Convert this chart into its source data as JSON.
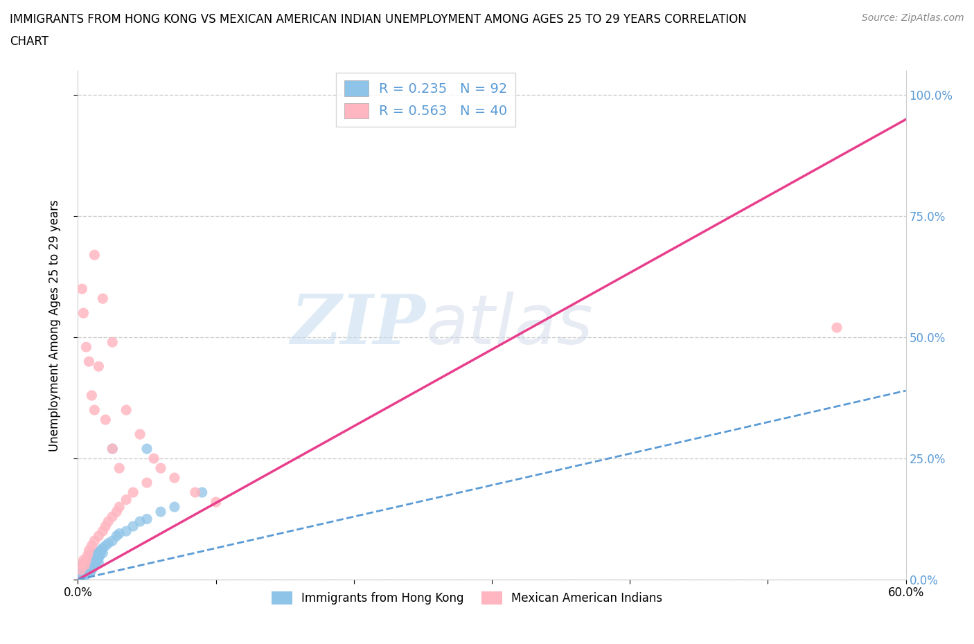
{
  "title_line1": "IMMIGRANTS FROM HONG KONG VS MEXICAN AMERICAN INDIAN UNEMPLOYMENT AMONG AGES 25 TO 29 YEARS CORRELATION",
  "title_line2": "CHART",
  "source": "Source: ZipAtlas.com",
  "ylabel": "Unemployment Among Ages 25 to 29 years",
  "legend_label_1": "Immigrants from Hong Kong",
  "legend_label_2": "Mexican American Indians",
  "R1": 0.235,
  "N1": 92,
  "R2": 0.563,
  "N2": 40,
  "color_blue": "#8ec4e8",
  "color_pink": "#ffb6c1",
  "trend_color_blue": "#5b9bd5",
  "trend_color_pink": "#e83e8c",
  "xlim": [
    0.0,
    0.6
  ],
  "ylim": [
    0.0,
    1.05
  ],
  "xticks": [
    0.0,
    0.1,
    0.2,
    0.3,
    0.4,
    0.5,
    0.6
  ],
  "yticks": [
    0.0,
    0.25,
    0.5,
    0.75,
    1.0
  ],
  "right_ytick_labels": [
    "0.0%",
    "25.0%",
    "50.0%",
    "75.0%",
    "100.0%"
  ],
  "watermark_zip": "ZIP",
  "watermark_atlas": "atlas",
  "pink_trend_slope": 1.583,
  "pink_trend_intercept": 0.0,
  "blue_trend_slope": 0.65,
  "blue_trend_intercept": 0.0,
  "blue_points_x": [
    0.001,
    0.002,
    0.002,
    0.003,
    0.003,
    0.003,
    0.004,
    0.004,
    0.004,
    0.004,
    0.005,
    0.005,
    0.005,
    0.005,
    0.006,
    0.006,
    0.006,
    0.007,
    0.007,
    0.007,
    0.008,
    0.008,
    0.008,
    0.009,
    0.009,
    0.01,
    0.01,
    0.01,
    0.011,
    0.011,
    0.012,
    0.012,
    0.013,
    0.013,
    0.014,
    0.015,
    0.015,
    0.016,
    0.017,
    0.018,
    0.001,
    0.002,
    0.003,
    0.003,
    0.004,
    0.005,
    0.005,
    0.006,
    0.006,
    0.007,
    0.007,
    0.008,
    0.009,
    0.009,
    0.01,
    0.011,
    0.012,
    0.013,
    0.014,
    0.015,
    0.001,
    0.002,
    0.002,
    0.003,
    0.004,
    0.004,
    0.005,
    0.006,
    0.007,
    0.008,
    0.009,
    0.01,
    0.011,
    0.012,
    0.013,
    0.014,
    0.016,
    0.018,
    0.02,
    0.022,
    0.025,
    0.028,
    0.03,
    0.035,
    0.04,
    0.045,
    0.05,
    0.06,
    0.07,
    0.09,
    0.025,
    0.05
  ],
  "blue_points_y": [
    0.01,
    0.015,
    0.02,
    0.01,
    0.025,
    0.03,
    0.015,
    0.02,
    0.025,
    0.03,
    0.02,
    0.025,
    0.03,
    0.035,
    0.025,
    0.03,
    0.035,
    0.02,
    0.03,
    0.04,
    0.025,
    0.035,
    0.045,
    0.03,
    0.04,
    0.025,
    0.035,
    0.05,
    0.03,
    0.045,
    0.035,
    0.05,
    0.04,
    0.055,
    0.045,
    0.035,
    0.055,
    0.05,
    0.06,
    0.055,
    0.005,
    0.01,
    0.015,
    0.02,
    0.01,
    0.015,
    0.02,
    0.01,
    0.015,
    0.02,
    0.025,
    0.02,
    0.015,
    0.025,
    0.02,
    0.025,
    0.03,
    0.035,
    0.04,
    0.045,
    0.0,
    0.005,
    0.01,
    0.005,
    0.01,
    0.015,
    0.01,
    0.015,
    0.02,
    0.025,
    0.03,
    0.035,
    0.04,
    0.045,
    0.05,
    0.055,
    0.06,
    0.065,
    0.07,
    0.075,
    0.08,
    0.09,
    0.095,
    0.1,
    0.11,
    0.12,
    0.125,
    0.14,
    0.15,
    0.18,
    0.27,
    0.27
  ],
  "pink_points_x": [
    0.002,
    0.003,
    0.004,
    0.005,
    0.006,
    0.007,
    0.008,
    0.01,
    0.012,
    0.015,
    0.018,
    0.02,
    0.022,
    0.025,
    0.028,
    0.03,
    0.035,
    0.04,
    0.05,
    0.06,
    0.003,
    0.004,
    0.006,
    0.008,
    0.01,
    0.012,
    0.015,
    0.02,
    0.025,
    0.03,
    0.012,
    0.018,
    0.025,
    0.035,
    0.045,
    0.055,
    0.07,
    0.085,
    0.1,
    0.55
  ],
  "pink_points_y": [
    0.02,
    0.03,
    0.04,
    0.03,
    0.04,
    0.05,
    0.06,
    0.07,
    0.08,
    0.09,
    0.1,
    0.11,
    0.12,
    0.13,
    0.14,
    0.15,
    0.165,
    0.18,
    0.2,
    0.23,
    0.6,
    0.55,
    0.48,
    0.45,
    0.38,
    0.35,
    0.44,
    0.33,
    0.27,
    0.23,
    0.67,
    0.58,
    0.49,
    0.35,
    0.3,
    0.25,
    0.21,
    0.18,
    0.16,
    0.52
  ]
}
